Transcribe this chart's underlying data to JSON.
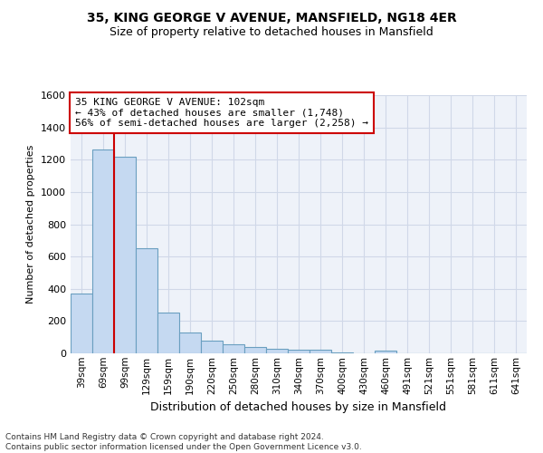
{
  "title1": "35, KING GEORGE V AVENUE, MANSFIELD, NG18 4ER",
  "title2": "Size of property relative to detached houses in Mansfield",
  "xlabel": "Distribution of detached houses by size in Mansfield",
  "ylabel": "Number of detached properties",
  "categories": [
    "39sqm",
    "69sqm",
    "99sqm",
    "129sqm",
    "159sqm",
    "190sqm",
    "220sqm",
    "250sqm",
    "280sqm",
    "310sqm",
    "340sqm",
    "370sqm",
    "400sqm",
    "430sqm",
    "460sqm",
    "491sqm",
    "521sqm",
    "551sqm",
    "581sqm",
    "611sqm",
    "641sqm"
  ],
  "values": [
    370,
    1265,
    1220,
    650,
    255,
    130,
    80,
    55,
    40,
    30,
    25,
    20,
    5,
    0,
    15,
    0,
    0,
    0,
    0,
    0,
    0
  ],
  "bar_color": "#c5d9f1",
  "bar_edge_color": "#6a9fc0",
  "red_line_index": 2,
  "annotation_line1": "35 KING GEORGE V AVENUE: 102sqm",
  "annotation_line2": "← 43% of detached houses are smaller (1,748)",
  "annotation_line3": "56% of semi-detached houses are larger (2,258) →",
  "annotation_box_color": "#ffffff",
  "annotation_box_edge": "#cc0000",
  "ylim": [
    0,
    1600
  ],
  "yticks": [
    0,
    200,
    400,
    600,
    800,
    1000,
    1200,
    1400,
    1600
  ],
  "footer": "Contains HM Land Registry data © Crown copyright and database right 2024.\nContains public sector information licensed under the Open Government Licence v3.0.",
  "bg_color": "#eef2f9",
  "grid_color": "#d0d8e8",
  "title1_fontsize": 10,
  "title2_fontsize": 9,
  "bar_linewidth": 0.8,
  "ylabel_fontsize": 8,
  "xlabel_fontsize": 9,
  "tick_fontsize": 8,
  "xtick_fontsize": 7.5,
  "footer_fontsize": 6.5,
  "annot_fontsize": 8
}
